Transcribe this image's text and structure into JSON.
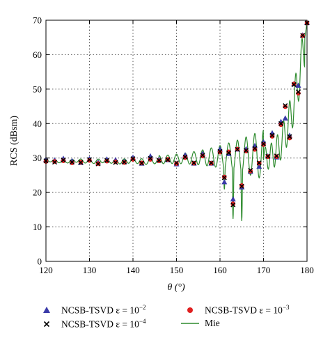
{
  "chart_data": {
    "type": "line",
    "title": "",
    "xlabel": "θ (°)",
    "ylabel": "RCS (dBsm)",
    "xlim": [
      120,
      180
    ],
    "ylim": [
      0,
      70
    ],
    "xticks": [
      "120",
      "130",
      "140",
      "150",
      "160",
      "170",
      "180"
    ],
    "yticks": [
      "0",
      "10",
      "20",
      "30",
      "40",
      "50",
      "60",
      "70"
    ],
    "grid": true,
    "legend_position": "bottom",
    "series": [
      {
        "name": "NCSB-TSVD ε = 10^-2",
        "legend_prefix": "NCSB-TSVD ε = 10",
        "legend_exp": "−2",
        "marker": "triangle",
        "color": "#3a3aa8",
        "x": [
          120,
          122,
          124,
          126,
          128,
          130,
          132,
          134,
          136,
          138,
          140,
          142,
          144,
          146,
          148,
          150,
          152,
          154,
          156,
          158,
          160,
          161,
          162,
          163,
          164,
          165,
          166,
          167,
          168,
          169,
          170,
          171,
          172,
          173,
          174,
          175,
          176,
          177,
          178,
          179,
          180
        ],
        "y": [
          29.5,
          29.3,
          29.8,
          29.1,
          28.6,
          29.7,
          28.7,
          29.6,
          29.4,
          28.9,
          30.1,
          28.4,
          30.5,
          29.5,
          29.4,
          28.2,
          30.8,
          28.4,
          31.2,
          28.4,
          32.5,
          23.0,
          31.2,
          18.0,
          32.5,
          21.5,
          32.6,
          26.0,
          33.5,
          27.5,
          34.6,
          30.5,
          37.2,
          30.2,
          40.5,
          41.5,
          36.5,
          51.5,
          51.0,
          65.6,
          69.2
        ]
      },
      {
        "name": "NCSB-TSVD ε = 10^-3",
        "legend_prefix": "NCSB-TSVD ε = 10",
        "legend_exp": "−3",
        "marker": "circle",
        "color": "#e02020",
        "x": [
          120,
          122,
          124,
          126,
          128,
          130,
          132,
          134,
          136,
          138,
          140,
          142,
          144,
          146,
          148,
          150,
          152,
          154,
          156,
          158,
          160,
          161,
          162,
          163,
          164,
          165,
          166,
          167,
          168,
          169,
          170,
          171,
          172,
          173,
          174,
          175,
          176,
          177,
          178,
          179,
          180
        ],
        "y": [
          29.0,
          29.0,
          29.2,
          28.6,
          28.8,
          29.3,
          28.4,
          29.1,
          28.9,
          28.7,
          29.6,
          28.6,
          29.6,
          29.2,
          29.6,
          28.4,
          30.1,
          28.5,
          30.6,
          28.5,
          31.7,
          24.5,
          31.8,
          16.7,
          32.6,
          22.0,
          32.0,
          26.2,
          32.5,
          28.5,
          33.9,
          30.4,
          36.3,
          30.4,
          39.7,
          44.9,
          35.8,
          51.5,
          48.8,
          65.5,
          69.2
        ]
      },
      {
        "name": "NCSB-TSVD ε = 10^-4",
        "legend_prefix": "NCSB-TSVD ε = 10",
        "legend_exp": "−4",
        "marker": "cross",
        "color": "#000000",
        "x": [
          120,
          122,
          124,
          126,
          128,
          130,
          132,
          134,
          136,
          138,
          140,
          142,
          144,
          146,
          148,
          150,
          152,
          154,
          156,
          158,
          160,
          161,
          162,
          163,
          164,
          165,
          166,
          167,
          168,
          169,
          170,
          171,
          172,
          173,
          174,
          175,
          176,
          177,
          178,
          179,
          180
        ],
        "y": [
          29.2,
          28.8,
          29.4,
          28.8,
          28.7,
          29.5,
          28.3,
          29.3,
          28.7,
          28.8,
          29.8,
          28.5,
          29.9,
          29.3,
          29.5,
          28.6,
          30.3,
          28.6,
          30.8,
          28.6,
          31.9,
          24.3,
          31.5,
          16.4,
          32.5,
          21.8,
          32.2,
          26.4,
          32.8,
          28.6,
          34.1,
          30.5,
          36.6,
          30.6,
          40.0,
          45.2,
          36.2,
          51.3,
          49.2,
          65.6,
          69.2
        ]
      },
      {
        "name": "Mie",
        "marker": "line",
        "color": "#2e8b2e"
      }
    ]
  }
}
